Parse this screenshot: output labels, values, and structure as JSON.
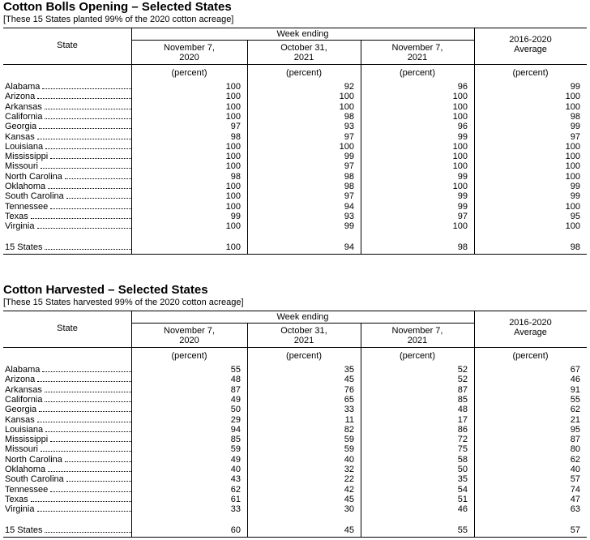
{
  "tables": [
    {
      "title": "Cotton Bolls Opening – Selected States",
      "subtitle": "[These 15 States planted 99% of the 2020 cotton acreage]",
      "header": {
        "state": "State",
        "group": "Week ending",
        "columns": [
          [
            "November 7,",
            "2020"
          ],
          [
            "October 31,",
            "2021"
          ],
          [
            "November 7,",
            "2021"
          ]
        ],
        "average": [
          "2016-2020",
          "Average"
        ],
        "units": [
          "(percent)",
          "(percent)",
          "(percent)",
          "(percent)"
        ]
      },
      "rows": [
        [
          "Alabama",
          100,
          92,
          96,
          99
        ],
        [
          "Arizona",
          100,
          100,
          100,
          100
        ],
        [
          "Arkansas",
          100,
          100,
          100,
          100
        ],
        [
          "California",
          100,
          98,
          100,
          98
        ],
        [
          "Georgia",
          97,
          93,
          96,
          99
        ],
        [
          "Kansas",
          98,
          97,
          99,
          97
        ],
        [
          "Louisiana",
          100,
          100,
          100,
          100
        ],
        [
          "Mississippi",
          100,
          99,
          100,
          100
        ],
        [
          "Missouri",
          100,
          97,
          100,
          100
        ],
        [
          "North Carolina",
          98,
          98,
          99,
          100
        ],
        [
          "Oklahoma",
          100,
          98,
          100,
          99
        ],
        [
          "South Carolina",
          100,
          97,
          99,
          99
        ],
        [
          "Tennessee",
          100,
          94,
          99,
          100
        ],
        [
          "Texas",
          99,
          93,
          97,
          95
        ],
        [
          "Virginia",
          100,
          99,
          100,
          100
        ]
      ],
      "total": [
        "15 States",
        100,
        94,
        98,
        98
      ]
    },
    {
      "title": "Cotton Harvested – Selected States",
      "subtitle": "[These 15 States harvested 99% of the 2020 cotton acreage]",
      "header": {
        "state": "State",
        "group": "Week ending",
        "columns": [
          [
            "November 7,",
            "2020"
          ],
          [
            "October 31,",
            "2021"
          ],
          [
            "November 7,",
            "2021"
          ]
        ],
        "average": [
          "2016-2020",
          "Average"
        ],
        "units": [
          "(percent)",
          "(percent)",
          "(percent)",
          "(percent)"
        ]
      },
      "rows": [
        [
          "Alabama",
          55,
          35,
          52,
          67
        ],
        [
          "Arizona",
          48,
          45,
          52,
          46
        ],
        [
          "Arkansas",
          87,
          76,
          87,
          91
        ],
        [
          "California",
          49,
          65,
          85,
          55
        ],
        [
          "Georgia",
          50,
          33,
          48,
          62
        ],
        [
          "Kansas",
          29,
          11,
          17,
          21
        ],
        [
          "Louisiana",
          94,
          82,
          86,
          95
        ],
        [
          "Mississippi",
          85,
          59,
          72,
          87
        ],
        [
          "Missouri",
          59,
          59,
          75,
          80
        ],
        [
          "North Carolina",
          49,
          40,
          58,
          62
        ],
        [
          "Oklahoma",
          40,
          32,
          50,
          40
        ],
        [
          "South Carolina",
          43,
          22,
          35,
          57
        ],
        [
          "Tennessee",
          62,
          42,
          54,
          74
        ],
        [
          "Texas",
          61,
          45,
          51,
          47
        ],
        [
          "Virginia",
          33,
          30,
          46,
          63
        ]
      ],
      "total": [
        "15 States",
        60,
        45,
        55,
        57
      ]
    }
  ]
}
